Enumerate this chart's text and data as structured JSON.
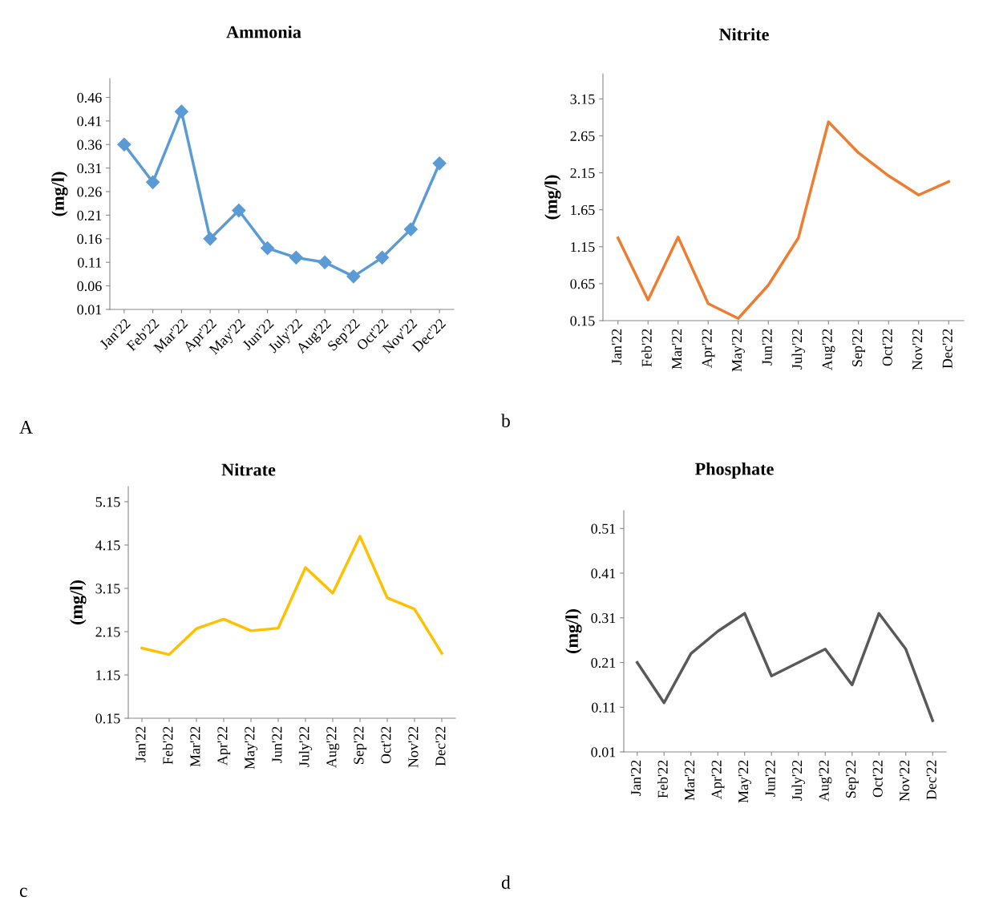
{
  "chart_data": [
    {
      "type": "line",
      "title": "Ammonia",
      "ylabel": "(mg/l)",
      "categories": [
        "Jan'22",
        "Feb'22",
        "Mar'22",
        "Apr'22",
        "May'22",
        "Jun'22",
        "July'22",
        "Aug'22",
        "Sep'22",
        "Oct'22",
        "Nov'22",
        "Dec'22"
      ],
      "series": [
        {
          "color": "#5b9bd5",
          "values": [
            0.36,
            0.28,
            0.43,
            0.16,
            0.22,
            0.14,
            0.12,
            0.11,
            0.08,
            0.12,
            0.18,
            0.32
          ]
        }
      ],
      "ylim": [
        0.01,
        0.5
      ],
      "yticks": [
        0.01,
        0.06,
        0.11,
        0.16,
        0.21,
        0.26,
        0.31,
        0.36,
        0.41,
        0.46
      ],
      "marker": "diamond",
      "grid": false,
      "legend": false,
      "annotations": [
        "A"
      ]
    },
    {
      "type": "line",
      "title": "Nitrite",
      "ylabel": "(mg/l)",
      "categories": [
        "Jan'22",
        "Feb'22",
        "Mar'22",
        "Apr'22",
        "May'22",
        "Jun'22",
        "July'22",
        "Aug'22",
        "Sep'22",
        "Oct'22",
        "Nov'22",
        "Dec'22"
      ],
      "series": [
        {
          "color": "#ed7d31",
          "values": [
            1.27,
            0.43,
            1.28,
            0.38,
            0.18,
            0.63,
            1.27,
            2.84,
            2.42,
            2.11,
            1.85,
            2.03
          ]
        }
      ],
      "ylim": [
        0.15,
        3.49
      ],
      "yticks": [
        0.15,
        0.65,
        1.15,
        1.65,
        2.15,
        2.65,
        3.15
      ],
      "marker": "none",
      "grid": false,
      "legend": false,
      "annotations": [
        "b"
      ]
    },
    {
      "type": "line",
      "title": "Nitrate",
      "ylabel": "(mg/l)",
      "categories": [
        "Jan'22",
        "Feb'22",
        "Mar'22",
        "Apr'22",
        "May'22",
        "Jun'22",
        "July'22",
        "Aug'22",
        "Sep'22",
        "Oct'22",
        "Nov'22",
        "Dec'22"
      ],
      "series": [
        {
          "color": "#ffc000",
          "values": [
            1.77,
            1.62,
            2.22,
            2.44,
            2.17,
            2.23,
            3.63,
            3.04,
            4.35,
            2.93,
            2.67,
            1.65
          ]
        }
      ],
      "ylim": [
        0.15,
        5.5
      ],
      "yticks": [
        0.15,
        1.15,
        2.15,
        3.15,
        4.15,
        5.15
      ],
      "marker": "none",
      "grid": false,
      "legend": false,
      "annotations": [
        "c"
      ]
    },
    {
      "type": "line",
      "title": "Phosphate",
      "ylabel": "(mg/l)",
      "categories": [
        "Jan'22",
        "Feb'22",
        "Mar'22",
        "Apr'22",
        "May'22",
        "Jun'22",
        "July'22",
        "Aug'22",
        "Sep'22",
        "Oct'22",
        "Nov'22",
        "Dec'22"
      ],
      "series": [
        {
          "color": "#595959",
          "values": [
            0.21,
            0.12,
            0.23,
            0.28,
            0.32,
            0.18,
            0.21,
            0.24,
            0.16,
            0.32,
            0.24,
            0.08
          ]
        }
      ],
      "ylim": [
        0.01,
        0.55
      ],
      "yticks": [
        0.01,
        0.11,
        0.21,
        0.31,
        0.41,
        0.51
      ],
      "marker": "none",
      "grid": false,
      "legend": false,
      "annotations": [
        "d"
      ]
    }
  ]
}
